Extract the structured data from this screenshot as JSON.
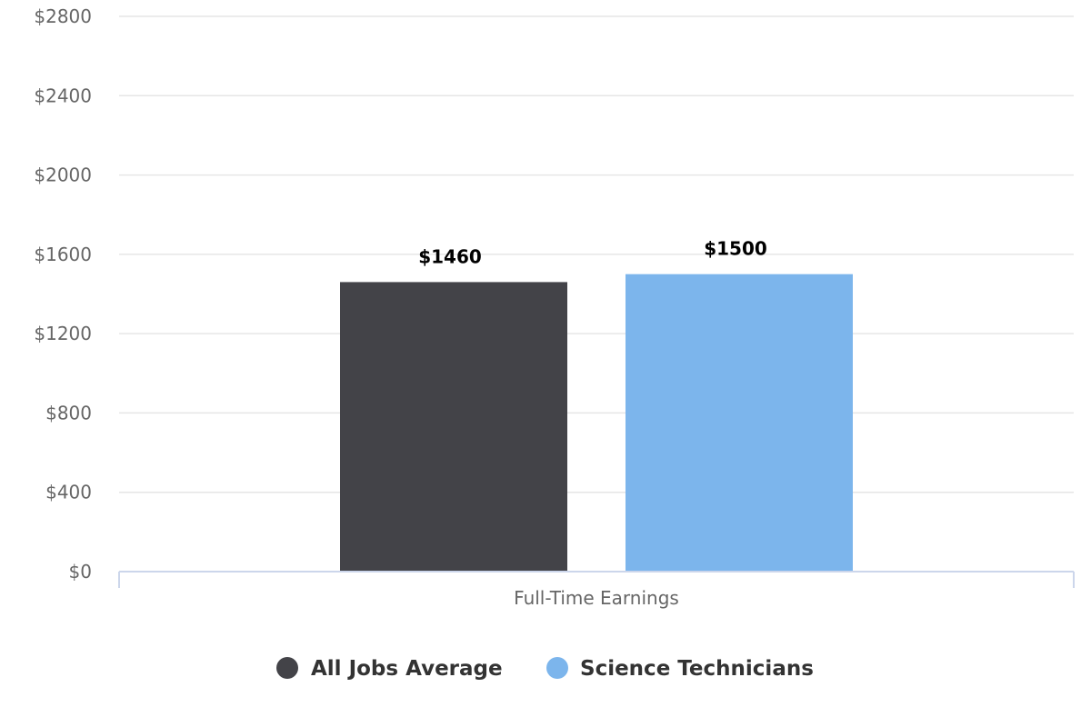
{
  "chart_data": {
    "type": "bar",
    "categories": [
      "Full-Time Earnings"
    ],
    "series": [
      {
        "name": "All Jobs Average",
        "values": [
          1460
        ],
        "color": "#434348",
        "label": "$1460"
      },
      {
        "name": "Science Technicians",
        "values": [
          1500
        ],
        "color": "#7cb5ec",
        "label": "$1500"
      }
    ],
    "ylim": [
      0,
      2800
    ],
    "yticks": [
      0,
      400,
      800,
      1200,
      1600,
      2000,
      2400,
      2800
    ],
    "ytick_labels": [
      "$0",
      "$400",
      "$800",
      "$1200",
      "$1600",
      "$2000",
      "$2400",
      "$2800"
    ],
    "grid": true,
    "legend_position": "bottom-center"
  }
}
